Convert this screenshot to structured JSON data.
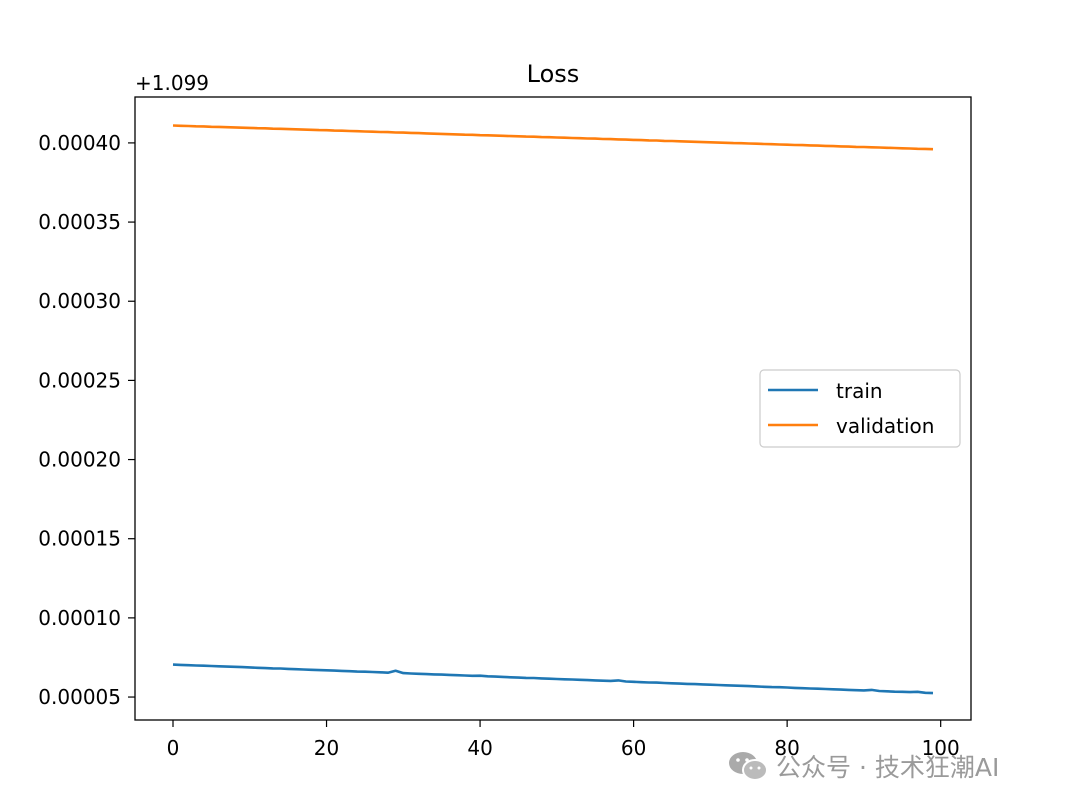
{
  "chart_data": {
    "type": "line",
    "title": "Loss",
    "xlabel": "",
    "ylabel": "",
    "y_offset_label": "+1.099",
    "y_offset": 1.099,
    "value_scale": 1e-05,
    "xlim": [
      -4.95,
      103.95
    ],
    "ylim": [
      3.55e-05,
      0.000429
    ],
    "xticks": [
      0,
      20,
      40,
      60,
      80,
      100
    ],
    "xtick_labels": [
      "0",
      "20",
      "40",
      "60",
      "80",
      "100"
    ],
    "yticks": [
      5e-05,
      0.0001,
      0.00015,
      0.0002,
      0.00025,
      0.0003,
      0.00035,
      0.0004
    ],
    "ytick_labels": [
      "0.00005",
      "0.00010",
      "0.00015",
      "0.00020",
      "0.00025",
      "0.00030",
      "0.00035",
      "0.00040"
    ],
    "grid": false,
    "legend_position": "center-right",
    "series": [
      {
        "name": "train",
        "color": "#1f77b4",
        "values": [
          7.05,
          7.03,
          7.01,
          6.99,
          6.98,
          6.96,
          6.94,
          6.92,
          6.91,
          6.89,
          6.87,
          6.85,
          6.83,
          6.81,
          6.8,
          6.78,
          6.76,
          6.74,
          6.72,
          6.7,
          6.69,
          6.67,
          6.65,
          6.63,
          6.61,
          6.6,
          6.58,
          6.56,
          6.54,
          6.66,
          6.51,
          6.49,
          6.47,
          6.45,
          6.43,
          6.42,
          6.4,
          6.38,
          6.36,
          6.34,
          6.35,
          6.31,
          6.29,
          6.27,
          6.25,
          6.23,
          6.21,
          6.2,
          6.18,
          6.16,
          6.14,
          6.12,
          6.11,
          6.09,
          6.07,
          6.05,
          6.03,
          6.02,
          6.05,
          5.98,
          5.96,
          5.94,
          5.92,
          5.91,
          5.89,
          5.87,
          5.85,
          5.83,
          5.82,
          5.8,
          5.78,
          5.76,
          5.74,
          5.72,
          5.71,
          5.69,
          5.67,
          5.65,
          5.63,
          5.62,
          5.6,
          5.58,
          5.56,
          5.54,
          5.53,
          5.51,
          5.49,
          5.47,
          5.45,
          5.43,
          5.42,
          5.45,
          5.38,
          5.36,
          5.34,
          5.33,
          5.31,
          5.33,
          5.27,
          5.25
        ]
      },
      {
        "name": "validation",
        "color": "#ff7f0e",
        "values": [
          41.1,
          41.08,
          41.07,
          41.05,
          41.04,
          41.02,
          41.01,
          40.99,
          40.98,
          40.96,
          40.95,
          40.93,
          40.92,
          40.9,
          40.89,
          40.87,
          40.86,
          40.84,
          40.83,
          40.81,
          40.8,
          40.78,
          40.77,
          40.75,
          40.74,
          40.72,
          40.71,
          40.69,
          40.68,
          40.66,
          40.65,
          40.63,
          40.62,
          40.6,
          40.58,
          40.57,
          40.55,
          40.54,
          40.52,
          40.51,
          40.49,
          40.48,
          40.46,
          40.45,
          40.43,
          40.42,
          40.4,
          40.39,
          40.37,
          40.36,
          40.34,
          40.33,
          40.31,
          40.3,
          40.28,
          40.27,
          40.25,
          40.24,
          40.22,
          40.21,
          40.19,
          40.18,
          40.16,
          40.15,
          40.13,
          40.12,
          40.1,
          40.08,
          40.07,
          40.05,
          40.04,
          40.02,
          40.01,
          39.99,
          39.98,
          39.96,
          39.95,
          39.93,
          39.92,
          39.9,
          39.89,
          39.87,
          39.86,
          39.84,
          39.83,
          39.81,
          39.8,
          39.78,
          39.77,
          39.75,
          39.74,
          39.72,
          39.71,
          39.69,
          39.68,
          39.66,
          39.65,
          39.63,
          39.62,
          39.6
        ]
      }
    ]
  },
  "watermark": {
    "text": "公众号 · 技术狂潮AI",
    "icon": "wechat-icon"
  }
}
